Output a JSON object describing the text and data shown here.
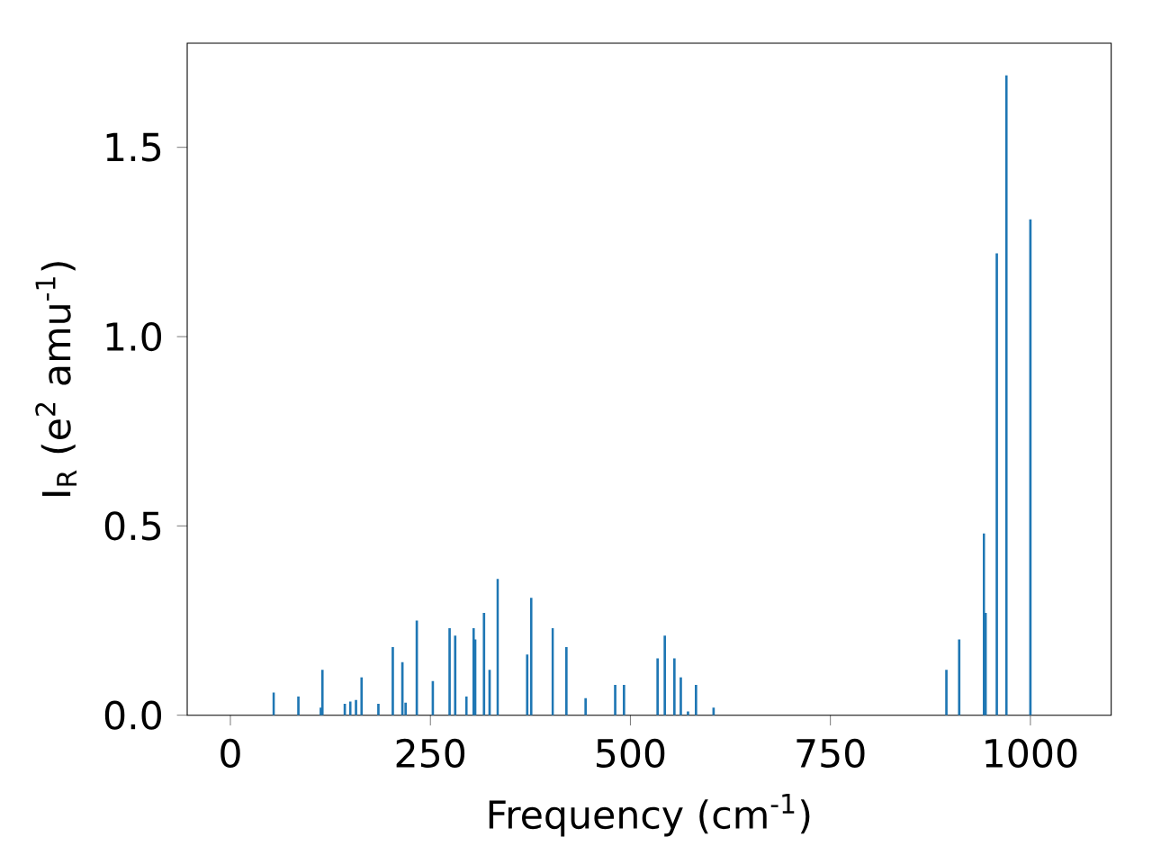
{
  "chart_data": {
    "type": "bar",
    "xlabel": "Frequency (cm$^{-1}$)",
    "ylabel": "I$_{R}$ (e$^{2}$ amu$^{-1}$)",
    "x": [
      54,
      85,
      113,
      115,
      143,
      150,
      157,
      164,
      185,
      203,
      215,
      219,
      233,
      253,
      274,
      281,
      295,
      304,
      306,
      317,
      324,
      334,
      371,
      376,
      403,
      420,
      444,
      481,
      492,
      534,
      543,
      555,
      563,
      572,
      582,
      604,
      895,
      911,
      942,
      944,
      958,
      970,
      1000
    ],
    "values": [
      0.06,
      0.05,
      0.02,
      0.12,
      0.03,
      0.036,
      0.04,
      0.1,
      0.03,
      0.18,
      0.14,
      0.033,
      0.25,
      0.09,
      0.23,
      0.21,
      0.05,
      0.23,
      0.2,
      0.27,
      0.12,
      0.36,
      0.16,
      0.31,
      0.23,
      0.18,
      0.045,
      0.08,
      0.08,
      0.15,
      0.21,
      0.15,
      0.1,
      0.01,
      0.08,
      0.02,
      0.12,
      0.2,
      0.48,
      0.27,
      1.22,
      1.69,
      1.31
    ],
    "color": "#1f77b4",
    "xlim": [
      -54,
      1101
    ],
    "ylim": [
      0,
      1.775
    ],
    "xticks": [
      0,
      250,
      500,
      750,
      1000
    ],
    "yticks": [
      {
        "value": 0,
        "label": "0.0"
      },
      {
        "value": 0.5,
        "label": "0.5"
      },
      {
        "value": 1.0,
        "label": "1.0"
      },
      {
        "value": 1.5,
        "label": "1.5"
      }
    ]
  }
}
